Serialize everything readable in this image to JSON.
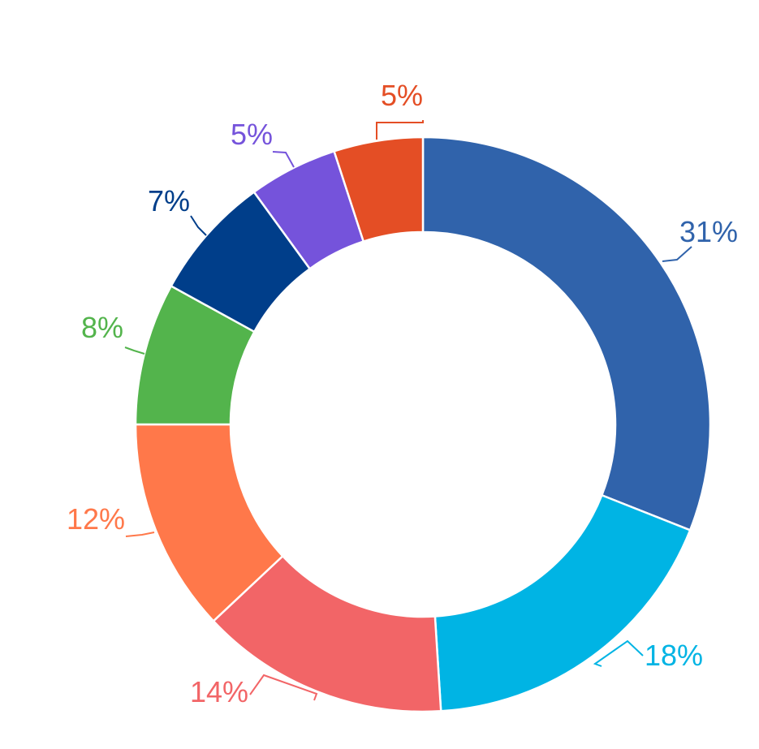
{
  "chart_data": {
    "type": "pie",
    "variant": "donut",
    "title": "",
    "legend": "none",
    "slices": [
      {
        "value": 31,
        "label": "31%",
        "color": "#3063ab"
      },
      {
        "value": 18,
        "label": "18%",
        "color": "#00b4e4"
      },
      {
        "value": 14,
        "label": "14%",
        "color": "#f26567"
      },
      {
        "value": 12,
        "label": "12%",
        "color": "#ff784a"
      },
      {
        "value": 8,
        "label": "8%",
        "color": "#53b44c"
      },
      {
        "value": 7,
        "label": "7%",
        "color": "#003e8a"
      },
      {
        "value": 5,
        "label": "5%",
        "color": "#7553db"
      },
      {
        "value": 5,
        "label": "5%",
        "color": "#e44e25"
      }
    ]
  }
}
